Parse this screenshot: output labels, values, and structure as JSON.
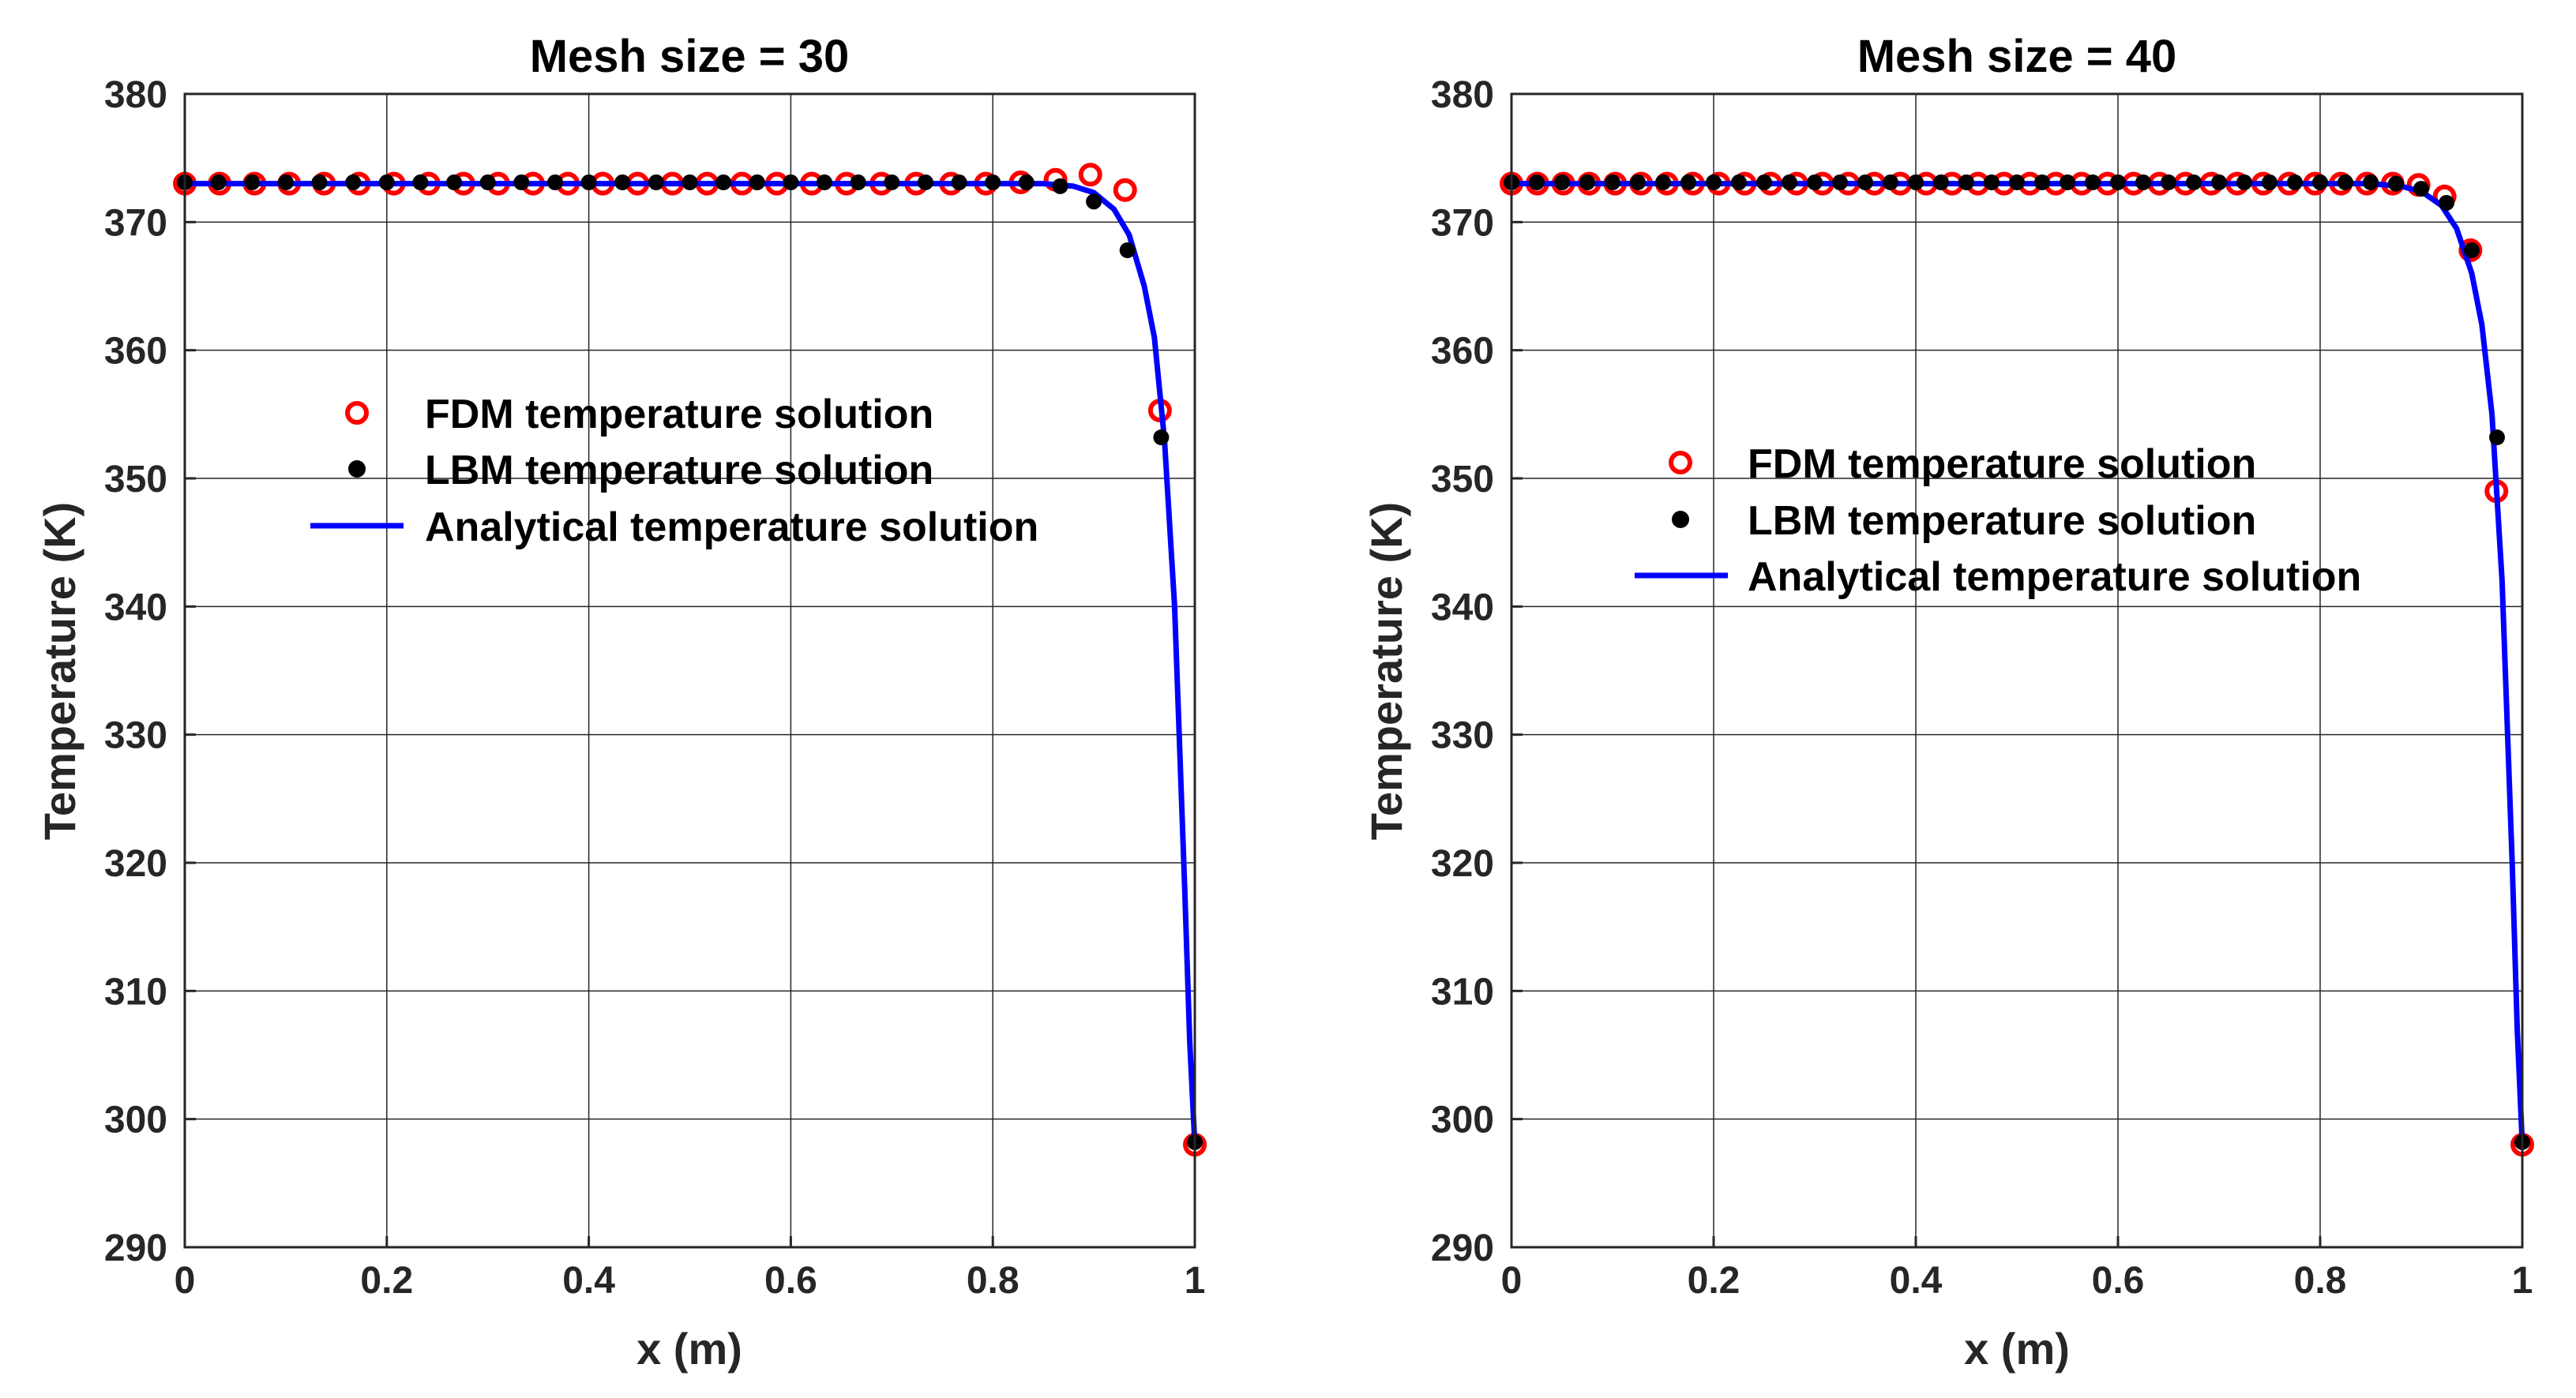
{
  "figure": {
    "colors": {
      "fdm": "#ff0000",
      "lbm": "#000000",
      "analytical": "#0000ff",
      "grid": "#262626",
      "axis": "#262626"
    }
  },
  "chart_data": [
    {
      "type": "line",
      "title": "Mesh size = 30",
      "xlabel": "x (m)",
      "ylabel": "Temperature (K)",
      "xlim": [
        0,
        1
      ],
      "ylim": [
        290,
        380
      ],
      "xticks": [
        0,
        0.2,
        0.4,
        0.6,
        0.8,
        1
      ],
      "xtick_labels": [
        "0",
        "0.2",
        "0.4",
        "0.6",
        "0.8",
        "1"
      ],
      "yticks": [
        290,
        300,
        310,
        320,
        330,
        340,
        350,
        360,
        370,
        380
      ],
      "ytick_labels": [
        "290",
        "300",
        "310",
        "320",
        "330",
        "340",
        "350",
        "360",
        "370",
        "380"
      ],
      "grid": true,
      "legend_position": "middle-center",
      "series": [
        {
          "name": "FDM temperature solution",
          "marker": "open-circle",
          "x": [
            0,
            0.0345,
            0.069,
            0.1034,
            0.1379,
            0.1724,
            0.2069,
            0.2414,
            0.2759,
            0.3103,
            0.3448,
            0.3793,
            0.4138,
            0.4483,
            0.4828,
            0.5172,
            0.5517,
            0.5862,
            0.6207,
            0.6552,
            0.6897,
            0.7241,
            0.7586,
            0.7931,
            0.8276,
            0.8621,
            0.8966,
            0.931,
            0.9655,
            1
          ],
          "y": [
            373,
            373,
            373,
            373,
            373,
            373,
            373,
            373,
            373,
            373,
            373,
            373,
            373,
            373,
            373,
            373,
            373,
            373,
            373,
            373,
            373,
            373,
            373,
            373,
            373.1,
            373.3,
            373.7,
            372.5,
            355.3,
            298
          ]
        },
        {
          "name": "LBM temperature solution",
          "marker": "filled-dot",
          "x": [
            0,
            0.0333,
            0.0667,
            0.1,
            0.1333,
            0.1667,
            0.2,
            0.2333,
            0.2667,
            0.3,
            0.3333,
            0.3667,
            0.4,
            0.4333,
            0.4667,
            0.5,
            0.5333,
            0.5667,
            0.6,
            0.6333,
            0.6667,
            0.7,
            0.7333,
            0.7667,
            0.8,
            0.8333,
            0.8667,
            0.9,
            0.9333,
            0.9667,
            1
          ],
          "y": [
            373.1,
            373.1,
            373.1,
            373.1,
            373.1,
            373.1,
            373.1,
            373.1,
            373.1,
            373.1,
            373.1,
            373.1,
            373.1,
            373.1,
            373.1,
            373.1,
            373.1,
            373.1,
            373.1,
            373.1,
            373.1,
            373.1,
            373.1,
            373.1,
            373.1,
            373.1,
            372.8,
            371.6,
            367.8,
            353.2,
            298.2
          ]
        },
        {
          "name": "Analytical temperature solution",
          "marker": "line",
          "x": [
            0,
            0.8,
            0.85,
            0.88,
            0.9,
            0.92,
            0.935,
            0.95,
            0.96,
            0.97,
            0.98,
            0.99,
            0.995,
            1
          ],
          "y": [
            373,
            373,
            373,
            372.8,
            372.3,
            371,
            369,
            365,
            361,
            353,
            340,
            318,
            306,
            298
          ]
        }
      ]
    },
    {
      "type": "line",
      "title": "Mesh size = 40",
      "xlabel": "x (m)",
      "ylabel": "Temperature (K)",
      "xlim": [
        0,
        1
      ],
      "ylim": [
        290,
        380
      ],
      "xticks": [
        0,
        0.2,
        0.4,
        0.6,
        0.8,
        1
      ],
      "xtick_labels": [
        "0",
        "0.2",
        "0.4",
        "0.6",
        "0.8",
        "1"
      ],
      "yticks": [
        290,
        300,
        310,
        320,
        330,
        340,
        350,
        360,
        370,
        380
      ],
      "ytick_labels": [
        "290",
        "300",
        "310",
        "320",
        "330",
        "340",
        "350",
        "360",
        "370",
        "380"
      ],
      "grid": true,
      "legend_position": "middle-center",
      "series": [
        {
          "name": "FDM temperature solution",
          "marker": "open-circle",
          "x": [
            0,
            0.0256,
            0.0513,
            0.0769,
            0.1026,
            0.1282,
            0.1538,
            0.1795,
            0.2051,
            0.2308,
            0.2564,
            0.2821,
            0.3077,
            0.3333,
            0.359,
            0.3846,
            0.4103,
            0.4359,
            0.4615,
            0.4872,
            0.5128,
            0.5385,
            0.5641,
            0.5897,
            0.6154,
            0.641,
            0.6667,
            0.6923,
            0.7179,
            0.7436,
            0.7692,
            0.7949,
            0.8205,
            0.8462,
            0.8718,
            0.8974,
            0.9231,
            0.9487,
            0.9744,
            1
          ],
          "y": [
            373,
            373,
            373,
            373,
            373,
            373,
            373,
            373,
            373,
            373,
            373,
            373,
            373,
            373,
            373,
            373,
            373,
            373,
            373,
            373,
            373,
            373,
            373,
            373,
            373,
            373,
            373,
            373,
            373,
            373,
            373,
            373,
            373,
            373,
            373,
            372.9,
            372,
            367.8,
            349,
            298
          ]
        },
        {
          "name": "LBM temperature solution",
          "marker": "filled-dot",
          "x": [
            0,
            0.025,
            0.05,
            0.075,
            0.1,
            0.125,
            0.15,
            0.175,
            0.2,
            0.225,
            0.25,
            0.275,
            0.3,
            0.325,
            0.35,
            0.375,
            0.4,
            0.425,
            0.45,
            0.475,
            0.5,
            0.525,
            0.55,
            0.575,
            0.6,
            0.625,
            0.65,
            0.675,
            0.7,
            0.725,
            0.75,
            0.775,
            0.8,
            0.825,
            0.85,
            0.875,
            0.9,
            0.925,
            0.95,
            0.975,
            1
          ],
          "y": [
            373.1,
            373.1,
            373.1,
            373.1,
            373.1,
            373.1,
            373.1,
            373.1,
            373.1,
            373.1,
            373.1,
            373.1,
            373.1,
            373.1,
            373.1,
            373.1,
            373.1,
            373.1,
            373.1,
            373.1,
            373.1,
            373.1,
            373.1,
            373.1,
            373.1,
            373.1,
            373.1,
            373.1,
            373.1,
            373.1,
            373.1,
            373.1,
            373.1,
            373.1,
            373.1,
            373,
            372.6,
            371.5,
            367.8,
            353.2,
            298.2
          ]
        },
        {
          "name": "Analytical temperature solution",
          "marker": "line",
          "x": [
            0,
            0.85,
            0.88,
            0.9,
            0.92,
            0.935,
            0.95,
            0.96,
            0.97,
            0.98,
            0.99,
            0.995,
            1
          ],
          "y": [
            373,
            373,
            372.8,
            372.4,
            371.3,
            369.5,
            366,
            362,
            355,
            342,
            320,
            307,
            298
          ]
        }
      ]
    }
  ]
}
